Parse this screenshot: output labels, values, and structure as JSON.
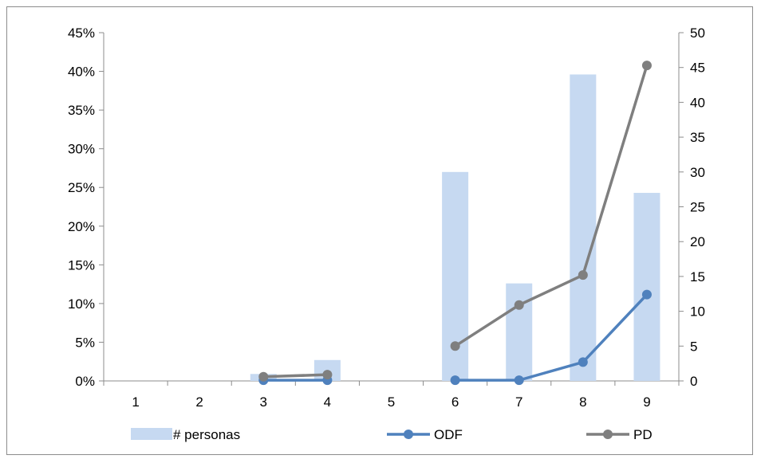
{
  "chart_data": {
    "type": "bar",
    "categories": [
      "1",
      "2",
      "3",
      "4",
      "5",
      "6",
      "7",
      "8",
      "9"
    ],
    "left_axis": {
      "ylim": [
        0,
        0.45
      ],
      "ticks": [
        "0%",
        "5%",
        "10%",
        "15%",
        "20%",
        "25%",
        "30%",
        "35%",
        "40%",
        "45%"
      ]
    },
    "right_axis": {
      "ylim": [
        0,
        50
      ],
      "ticks": [
        "0",
        "5",
        "10",
        "15",
        "20",
        "25",
        "30",
        "35",
        "40",
        "45",
        "50"
      ]
    },
    "series": [
      {
        "name": "# personas",
        "kind": "bar",
        "axis": "left",
        "color": "#c6d9f1",
        "values": [
          null,
          null,
          0.009,
          0.027,
          null,
          0.27,
          0.126,
          0.396,
          0.243
        ]
      },
      {
        "name": "ODF",
        "kind": "line",
        "axis": "right",
        "color": "#4f81bd",
        "values": [
          null,
          null,
          0.1,
          0.1,
          null,
          0.1,
          0.1,
          2.7,
          12.4
        ]
      },
      {
        "name": "PD",
        "kind": "line",
        "axis": "right",
        "color": "#7f7f7f",
        "values": [
          null,
          null,
          0.6,
          0.9,
          null,
          5.0,
          10.9,
          15.2,
          45.3
        ]
      }
    ],
    "legend_position": "bottom",
    "grid": false
  }
}
